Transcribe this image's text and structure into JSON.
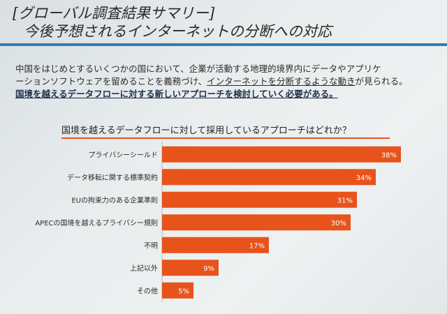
{
  "slide": {
    "title": "[グローバル調査結果サマリー]",
    "subtitle": "今後予想されるインターネットの分断への対応",
    "body_line1": "中国をはじめとするいくつかの国において、企業が活動する地理的境界内にデータやアプリケ",
    "body_line2_pre": "ーションソフトウェアを留めることを義務づけ、",
    "body_line2_u": "インターネットを分断するような動き",
    "body_line2_post": "が見られる。",
    "body_line3": "国境を越えるデータフローに対する新しいアプローチを検討していく必要がある。"
  },
  "colors": {
    "bar": "#e8531b",
    "title_rule": "#2c7fb8"
  },
  "chart_data": {
    "type": "bar",
    "orientation": "horizontal",
    "title": "国境を越えるデータフローに対して採用しているアプローチはどれか？",
    "categories": [
      "プライバシーシールド",
      "データ移転に関する標準契約",
      "EUの拘束力のある企業準則",
      "APECの国境を越えるプライバシー規則",
      "不明",
      "上記以外",
      "その他"
    ],
    "values": [
      38,
      34,
      31,
      30,
      17,
      9,
      5
    ],
    "value_labels": [
      "38%",
      "34%",
      "31%",
      "30%",
      "17%",
      "9%",
      "5%"
    ],
    "xlim": [
      0,
      40
    ],
    "unit": "%"
  }
}
